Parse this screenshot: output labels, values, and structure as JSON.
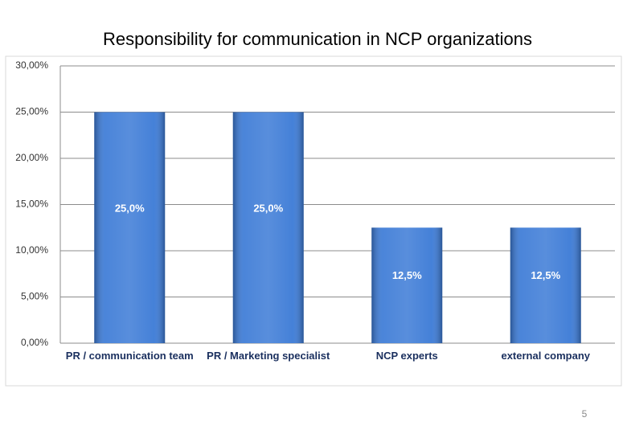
{
  "page_number": "5",
  "chart_data": {
    "type": "bar",
    "title": "Responsibility for communication in NCP organizations",
    "categories": [
      "PR / communication team",
      "PR / Marketing specialist",
      "NCP experts",
      "external company"
    ],
    "values": [
      25,
      25,
      12.5,
      12.5
    ],
    "value_labels": [
      "25,0%",
      "25,0%",
      "12,5%",
      "12,5%"
    ],
    "color": "#3b7ad6",
    "ylim": [
      0,
      30
    ],
    "yticks": [
      {
        "value": 0,
        "label": "0,00%"
      },
      {
        "value": 5,
        "label": "5,00%"
      },
      {
        "value": 10,
        "label": "10,00%"
      },
      {
        "value": 15,
        "label": "15,00%"
      },
      {
        "value": 20,
        "label": "20,00%"
      },
      {
        "value": 25,
        "label": "25,00%"
      },
      {
        "value": 30,
        "label": "30,00%"
      }
    ],
    "grid": true
  }
}
